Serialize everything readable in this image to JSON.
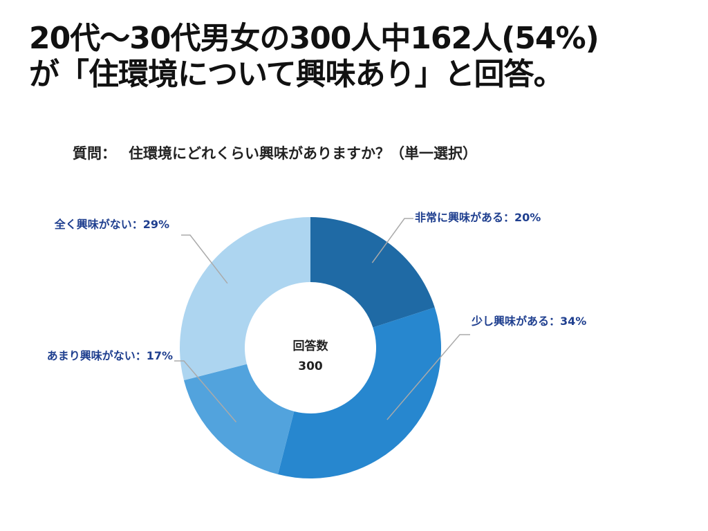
{
  "headline": {
    "line1": "20代〜30代男女の300人中162人(54%)",
    "line2": "が「住環境について興味あり」と回答。"
  },
  "question": {
    "label": "質問：",
    "text": "住環境にどれくらい興味がありますか？（単一選択）"
  },
  "chart_data": {
    "type": "pie",
    "donut": true,
    "center_label": "回答数",
    "center_value": "300",
    "slices": [
      {
        "label": "非常に興味がある：20%",
        "value": 20,
        "color": "#1f6aa5"
      },
      {
        "label": "少し興味がある：34%",
        "value": 34,
        "color": "#2787cf"
      },
      {
        "label": "あまり興味がない：17%",
        "value": 17,
        "color": "#52a3dd"
      },
      {
        "label": "全く興味がない：29%",
        "value": 29,
        "color": "#add5f0"
      }
    ]
  }
}
